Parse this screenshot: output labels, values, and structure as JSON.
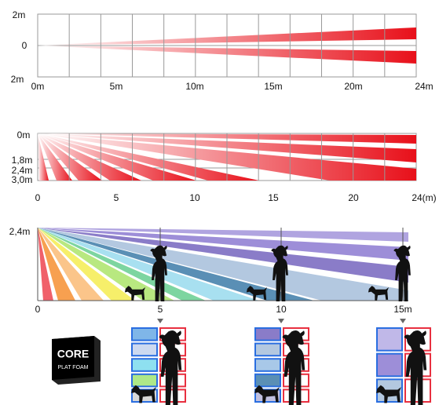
{
  "panels": [
    {
      "y_labels": [
        "2m",
        "0",
        "2m"
      ],
      "x_labels": [
        "0m",
        "5m",
        "10m",
        "15m",
        "20m",
        "24m"
      ]
    },
    {
      "y_labels": [
        "0m",
        "1,8m",
        "2,4m",
        "3,0m"
      ],
      "x_labels": [
        "0",
        "5",
        "10",
        "15",
        "20",
        "24(m)"
      ]
    },
    {
      "y_labels": [
        "2,4m"
      ],
      "x_labels": [
        "0",
        "5",
        "10",
        "15m"
      ]
    }
  ],
  "logo": {
    "title": "CORE",
    "subtitle": "PLAT FOAM"
  }
}
